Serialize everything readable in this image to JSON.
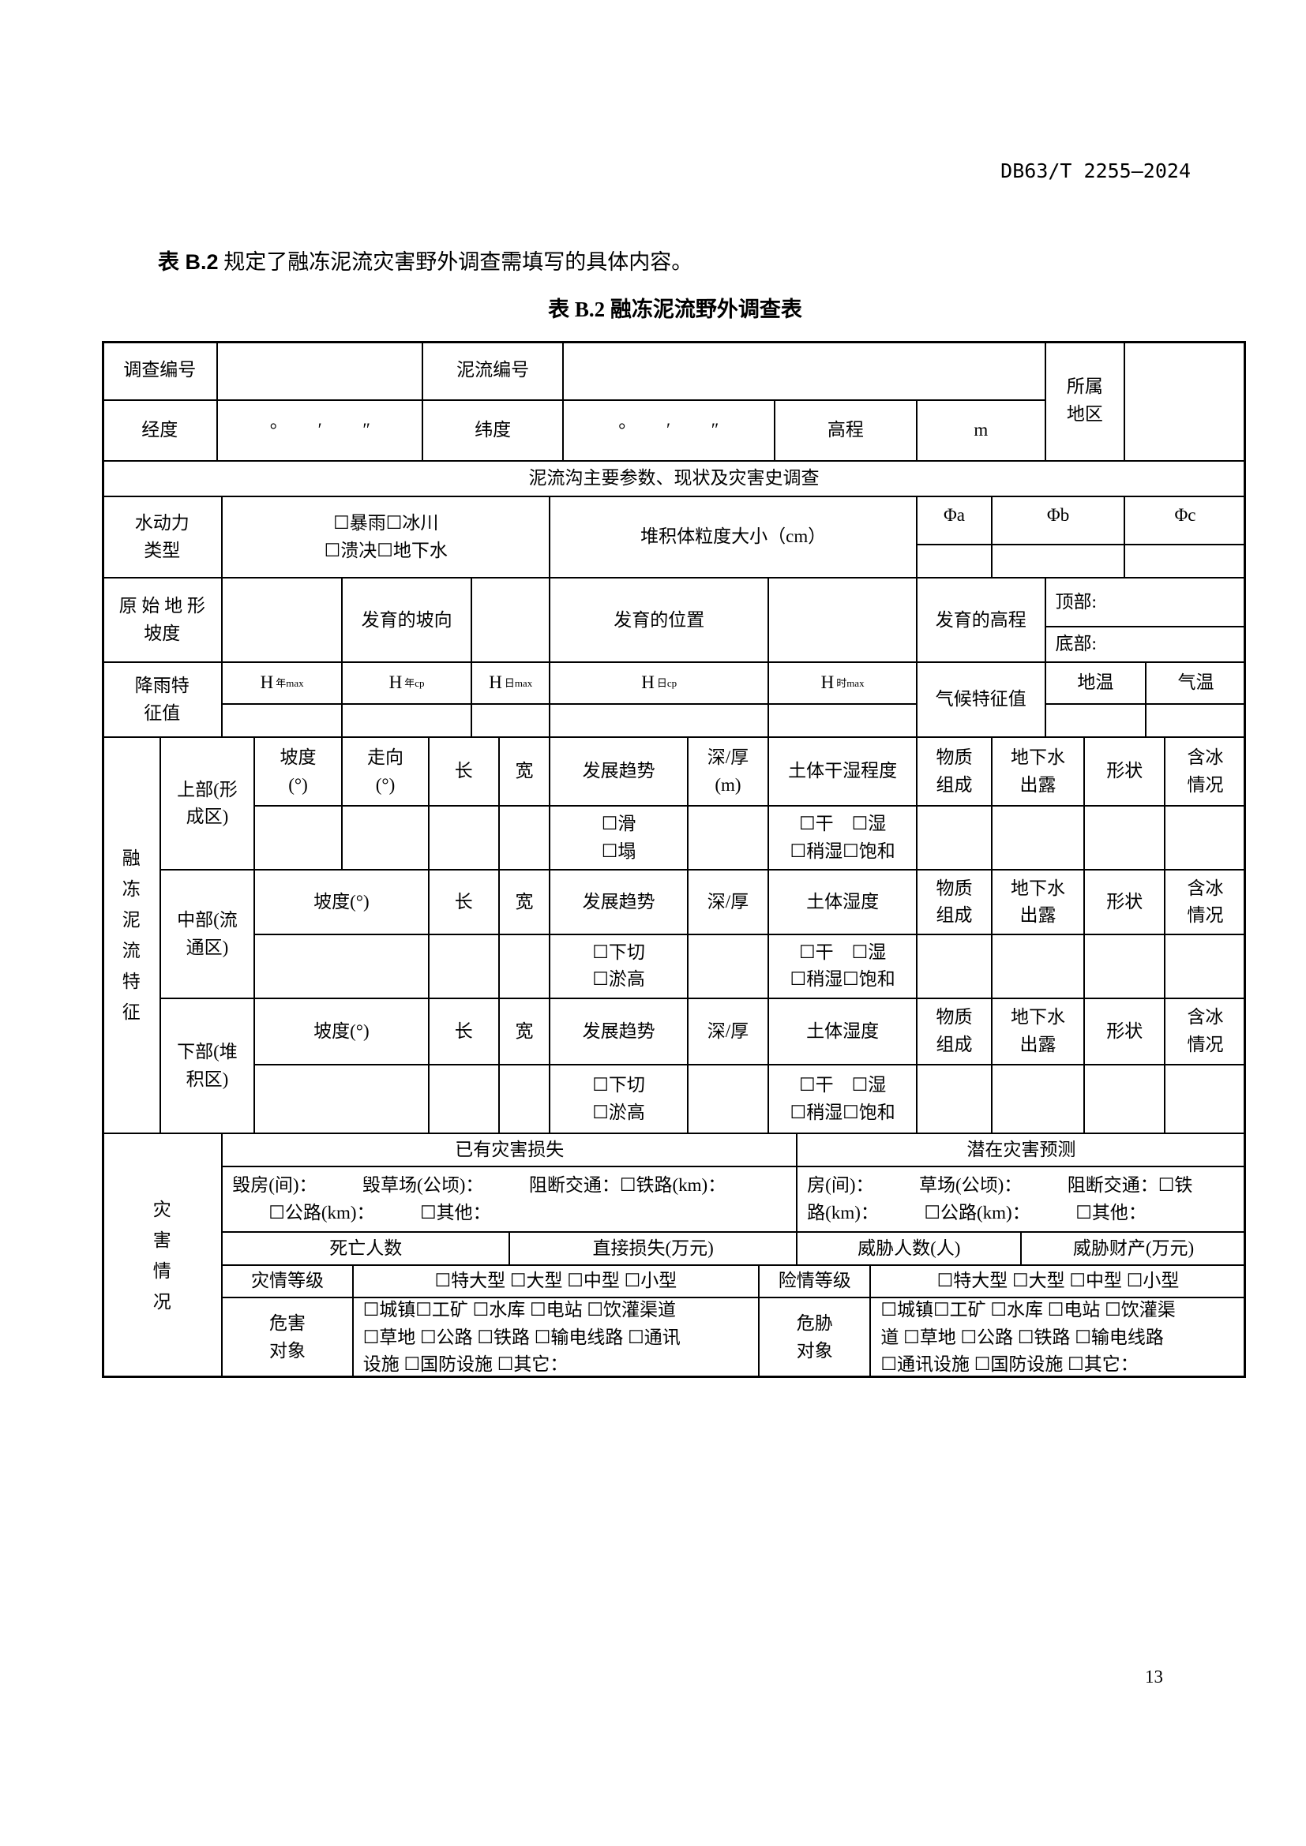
{
  "header": {
    "standard_no": "DB63/T 2255—2024"
  },
  "intro": {
    "bold": "表 B.2",
    "text": " 规定了融冻泥流灾害野外调查需填写的具体内容。"
  },
  "table_title": "表 B.2 融冻泥流野外调查表",
  "page_number": "13",
  "table": {
    "survey_no": "调查编号",
    "flow_no": "泥流编号",
    "region": "所属\n地区",
    "longitude": "经度",
    "lon_value": "°　　 ′　　 ″",
    "latitude": "纬度",
    "lat_value": "°　　 ′　　 ″",
    "elevation": "高程",
    "elev_unit": "m",
    "section1": "泥流沟主要参数、现状及灾害史调查",
    "hydro": "水动力\n类型",
    "hydro_opts": "☐暴雨☐冰川\n☐溃决☐地下水",
    "grain": "堆积体粒度大小（cm）",
    "phi_a": "Φa",
    "phi_b": "Φb",
    "phi_c": "Φc",
    "slope": "原 始 地 形\n坡度",
    "aspect": "发育的坡向",
    "position": "发育的位置",
    "dev_elev": "发育的高程",
    "top": "顶部:",
    "bottom": "底部:",
    "rain": "降雨特\n征值",
    "h": [
      {
        "H": "H",
        "s": "年max"
      },
      {
        "H": "H",
        "s": "年cp"
      },
      {
        "H": "H",
        "s": "日max"
      },
      {
        "H": "H",
        "s": "日cp"
      },
      {
        "H": "H",
        "s": "时max"
      }
    ],
    "climate": "气候特征值",
    "ground_temp": "地温",
    "air_temp": "气温",
    "flow_feature": "融\n冻\n泥\n流\n特\n征",
    "upper": "上部(形\n成区)",
    "middle": "中部(流\n通区)",
    "lower": "下部(堆\n积区)",
    "slope_deg": "坡度\n(°)",
    "strike": "走向\n(°)",
    "slope_deg2": "坡度(°)",
    "length": "长",
    "width": "宽",
    "trend": "发展趋势",
    "depth_m": "深/厚\n(m)",
    "depth": "深/厚",
    "dryness": "土体干湿程度",
    "humidity": "土体湿度",
    "material": "物质\n组成",
    "groundwater": "地下水\n出露",
    "shape": "形状",
    "ice": "含冰\n情况",
    "trend_upper": "☐滑\n☐塌",
    "trend_mid": "☐下切\n☐淤高",
    "moist_opts": "☐干　☐湿\n☐稍湿☐饱和",
    "disaster": "灾\n害\n情\n况",
    "existing": "已有灾害损失",
    "potential": "潜在灾害预测",
    "existing_detail": "毁房(间)：　　　毁草场(公顷)：　　　阻断交通：☐铁路(km)：\n　　☐公路(km)：　　　☐其他：",
    "potential_detail": "房(间)：　　　草场(公顷)：　　　阻断交通：☐铁\n路(km)：　　　☐公路(km)：　　　☐其他：",
    "deaths": "死亡人数",
    "direct_loss": "直接损失(万元)",
    "threat_people": "威胁人数(人)",
    "threat_property": "威胁财产(万元)",
    "disaster_grade": "灾情等级",
    "grade_opts": "☐特大型 ☐大型 ☐中型 ☐小型",
    "risk_grade": "险情等级",
    "harm_obj": "危害\n对象",
    "harm_opts": "☐城镇☐工矿 ☐水库 ☐电站 ☐饮灌渠道\n☐草地 ☐公路 ☐铁路 ☐输电线路 ☐通讯\n设施 ☐国防设施 ☐其它：",
    "threat_obj": "危胁\n对象",
    "threat_opts": "☐城镇☐工矿 ☐水库 ☐电站 ☐饮灌渠\n道 ☐草地 ☐公路 ☐铁路 ☐输电线路\n☐通讯设施 ☐国防设施 ☐其它："
  }
}
